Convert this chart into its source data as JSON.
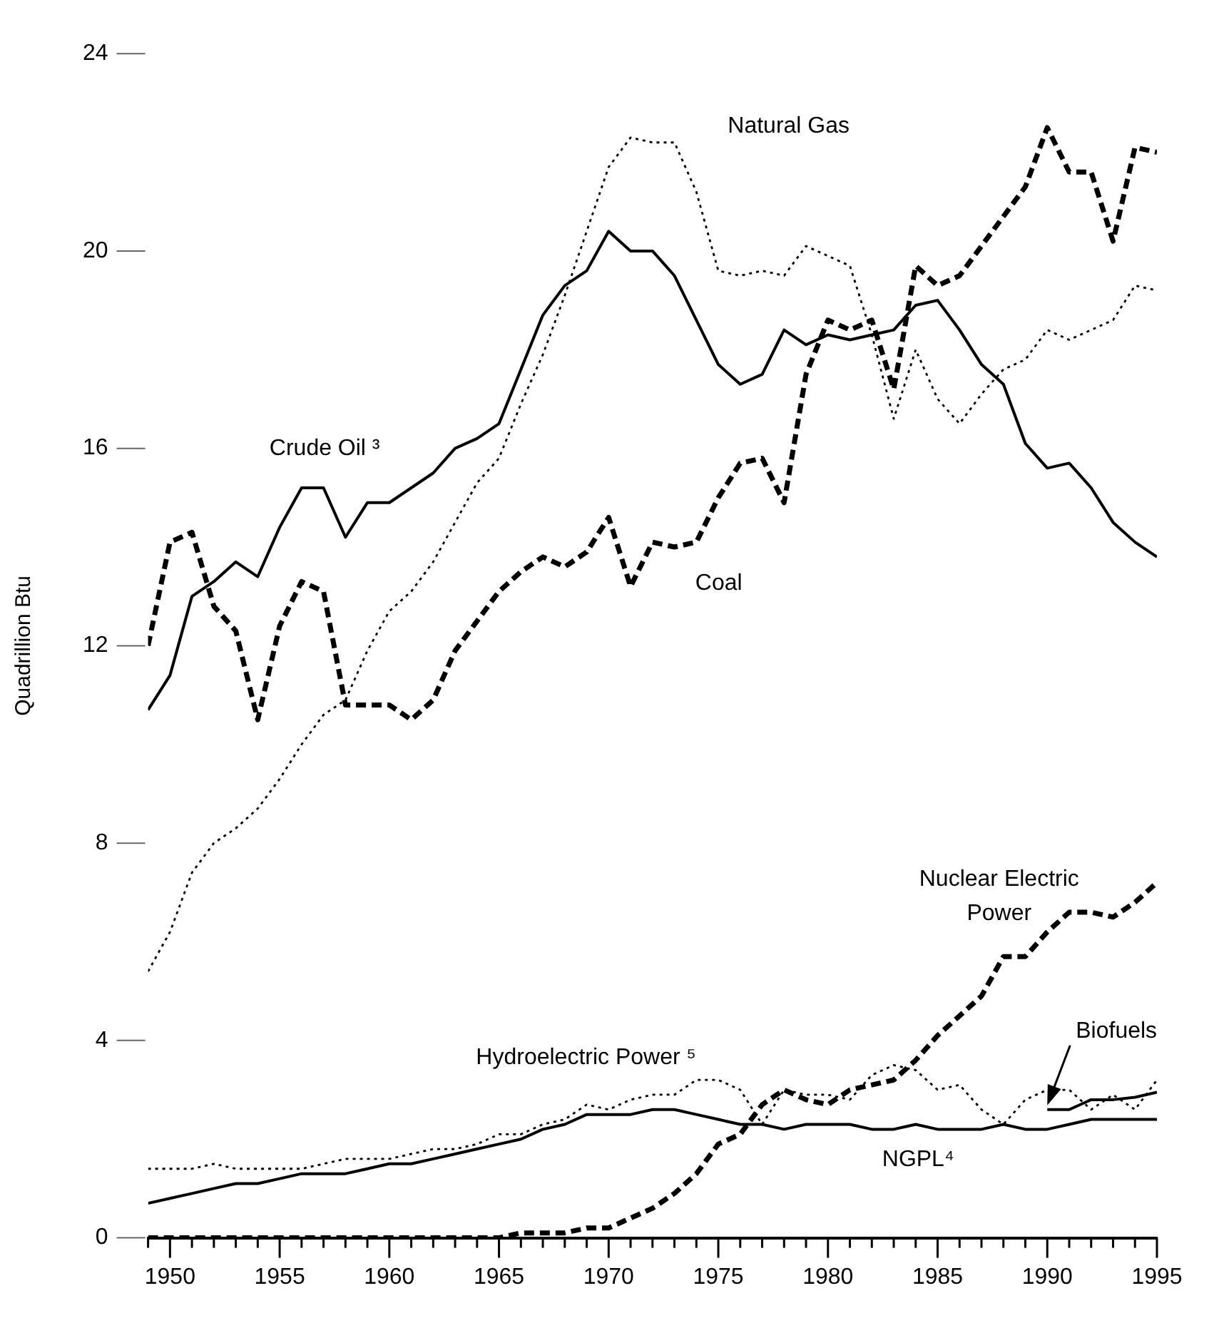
{
  "chart_data": {
    "type": "line",
    "ylabel": "Quadrillion Btu",
    "legend": false,
    "grid": false,
    "xlim": [
      1949,
      1995
    ],
    "xticks": [
      {
        "value": 1949,
        "label": null
      },
      1950,
      {
        "value": 1951,
        "label": null
      },
      {
        "value": 1952,
        "label": null
      },
      {
        "value": 1953,
        "label": null
      },
      {
        "value": 1954,
        "label": null
      },
      1955,
      {
        "value": 1956,
        "label": null
      },
      {
        "value": 1957,
        "label": null
      },
      {
        "value": 1958,
        "label": null
      },
      {
        "value": 1959,
        "label": null
      },
      1960,
      {
        "value": 1961,
        "label": null
      },
      {
        "value": 1962,
        "label": null
      },
      {
        "value": 1963,
        "label": null
      },
      {
        "value": 1964,
        "label": null
      },
      1965,
      {
        "value": 1966,
        "label": null
      },
      {
        "value": 1967,
        "label": null
      },
      {
        "value": 1968,
        "label": null
      },
      {
        "value": 1969,
        "label": null
      },
      1970,
      {
        "value": 1971,
        "label": null
      },
      {
        "value": 1972,
        "label": null
      },
      {
        "value": 1973,
        "label": null
      },
      {
        "value": 1974,
        "label": null
      },
      1975,
      {
        "value": 1976,
        "label": null
      },
      {
        "value": 1977,
        "label": null
      },
      {
        "value": 1978,
        "label": null
      },
      {
        "value": 1979,
        "label": null
      },
      1980,
      {
        "value": 1981,
        "label": null
      },
      {
        "value": 1982,
        "label": null
      },
      {
        "value": 1983,
        "label": null
      },
      {
        "value": 1984,
        "label": null
      },
      1985,
      {
        "value": 1986,
        "label": null
      },
      {
        "value": 1987,
        "label": null
      },
      {
        "value": 1988,
        "label": null
      },
      {
        "value": 1989,
        "label": null
      },
      1990,
      {
        "value": 1991,
        "label": null
      },
      {
        "value": 1992,
        "label": null
      },
      {
        "value": 1993,
        "label": null
      },
      {
        "value": 1994,
        "label": null
      },
      1995
    ],
    "ylim": [
      0,
      24
    ],
    "yticks": [
      0,
      4,
      8,
      12,
      16,
      20,
      24
    ],
    "x": [
      1949,
      1950,
      1951,
      1952,
      1953,
      1954,
      1955,
      1956,
      1957,
      1958,
      1959,
      1960,
      1961,
      1962,
      1963,
      1964,
      1965,
      1966,
      1967,
      1968,
      1969,
      1970,
      1971,
      1972,
      1973,
      1974,
      1975,
      1976,
      1977,
      1978,
      1979,
      1980,
      1981,
      1982,
      1983,
      1984,
      1985,
      1986,
      1987,
      1988,
      1989,
      1990,
      1991,
      1992,
      1993,
      1994,
      1995
    ],
    "series": [
      {
        "name": "Crude Oil ³",
        "color": "#000000",
        "line_style": "solid",
        "values": [
          10.7,
          11.4,
          13.0,
          13.3,
          13.7,
          13.4,
          14.4,
          15.2,
          15.2,
          14.2,
          14.9,
          14.9,
          15.2,
          15.5,
          16.0,
          16.2,
          16.5,
          17.6,
          18.7,
          19.3,
          19.6,
          20.4,
          20.0,
          20.0,
          19.5,
          18.6,
          17.7,
          17.3,
          17.5,
          18.4,
          18.1,
          18.3,
          18.2,
          18.3,
          18.4,
          18.9,
          19.0,
          18.4,
          17.7,
          17.3,
          16.1,
          15.6,
          15.7,
          15.2,
          14.5,
          14.1,
          13.8
        ]
      },
      {
        "name": "Natural Gas",
        "color": "#000000",
        "line_style": "dotted",
        "values": [
          5.4,
          6.2,
          7.4,
          8.0,
          8.3,
          8.7,
          9.3,
          10.0,
          10.6,
          10.9,
          11.9,
          12.7,
          13.1,
          13.7,
          14.5,
          15.3,
          15.8,
          16.9,
          17.9,
          19.1,
          20.4,
          21.7,
          22.3,
          22.2,
          22.2,
          21.2,
          19.6,
          19.5,
          19.6,
          19.5,
          20.1,
          19.9,
          19.7,
          18.3,
          16.6,
          18.0,
          17.0,
          16.5,
          17.1,
          17.6,
          17.8,
          18.4,
          18.2,
          18.4,
          18.6,
          19.3,
          19.2
        ]
      },
      {
        "name": "Coal",
        "color": "#000000",
        "line_style": "dashed",
        "values": [
          12.0,
          14.1,
          14.3,
          12.8,
          12.3,
          10.5,
          12.4,
          13.3,
          13.1,
          10.8,
          10.8,
          10.8,
          10.5,
          10.9,
          11.9,
          12.5,
          13.1,
          13.5,
          13.8,
          13.6,
          13.9,
          14.6,
          13.2,
          14.1,
          14.0,
          14.1,
          15.0,
          15.7,
          15.8,
          14.9,
          17.5,
          18.6,
          18.4,
          18.6,
          17.2,
          19.7,
          19.3,
          19.5,
          20.1,
          20.7,
          21.3,
          22.5,
          21.6,
          21.6,
          20.2,
          22.1,
          22.0
        ]
      },
      {
        "name": "Nuclear Electric Power",
        "color": "#000000",
        "line_style": "dashed",
        "values": [
          0,
          0,
          0,
          0,
          0,
          0,
          0,
          0,
          0,
          0,
          0,
          0,
          0,
          0,
          0,
          0,
          0,
          0.1,
          0.1,
          0.1,
          0.2,
          0.2,
          0.4,
          0.6,
          0.9,
          1.3,
          1.9,
          2.1,
          2.7,
          3.0,
          2.8,
          2.7,
          3.0,
          3.1,
          3.2,
          3.6,
          4.1,
          4.5,
          4.9,
          5.7,
          5.7,
          6.2,
          6.6,
          6.6,
          6.5,
          6.8,
          7.2
        ]
      },
      {
        "name": "Hydroelectric Power ⁵",
        "color": "#000000",
        "line_style": "dotted",
        "values": [
          1.4,
          1.4,
          1.4,
          1.5,
          1.4,
          1.4,
          1.4,
          1.4,
          1.5,
          1.6,
          1.6,
          1.6,
          1.7,
          1.8,
          1.8,
          1.9,
          2.1,
          2.1,
          2.3,
          2.4,
          2.7,
          2.6,
          2.8,
          2.9,
          2.9,
          3.2,
          3.2,
          3.0,
          2.3,
          3.0,
          2.9,
          2.9,
          2.8,
          3.3,
          3.5,
          3.4,
          3.0,
          3.1,
          2.6,
          2.3,
          2.8,
          3.0,
          3.0,
          2.6,
          2.9,
          2.6,
          3.2
        ]
      },
      {
        "name": "NGPL⁴",
        "color": "#000000",
        "line_style": "solid",
        "values": [
          0.7,
          0.8,
          0.9,
          1.0,
          1.1,
          1.1,
          1.2,
          1.3,
          1.3,
          1.3,
          1.4,
          1.5,
          1.5,
          1.6,
          1.7,
          1.8,
          1.9,
          2.0,
          2.2,
          2.3,
          2.5,
          2.5,
          2.5,
          2.6,
          2.6,
          2.5,
          2.4,
          2.3,
          2.3,
          2.2,
          2.3,
          2.3,
          2.3,
          2.2,
          2.2,
          2.3,
          2.2,
          2.2,
          2.2,
          2.3,
          2.2,
          2.2,
          2.3,
          2.4,
          2.4,
          2.4,
          2.4
        ]
      },
      {
        "name": "Biofuels",
        "color": "#000000",
        "line_style": "solid",
        "x": [
          1990,
          1991,
          1992,
          1993,
          1994,
          1995
        ],
        "values": [
          2.6,
          2.6,
          2.8,
          2.8,
          2.85,
          2.95
        ]
      }
    ]
  }
}
